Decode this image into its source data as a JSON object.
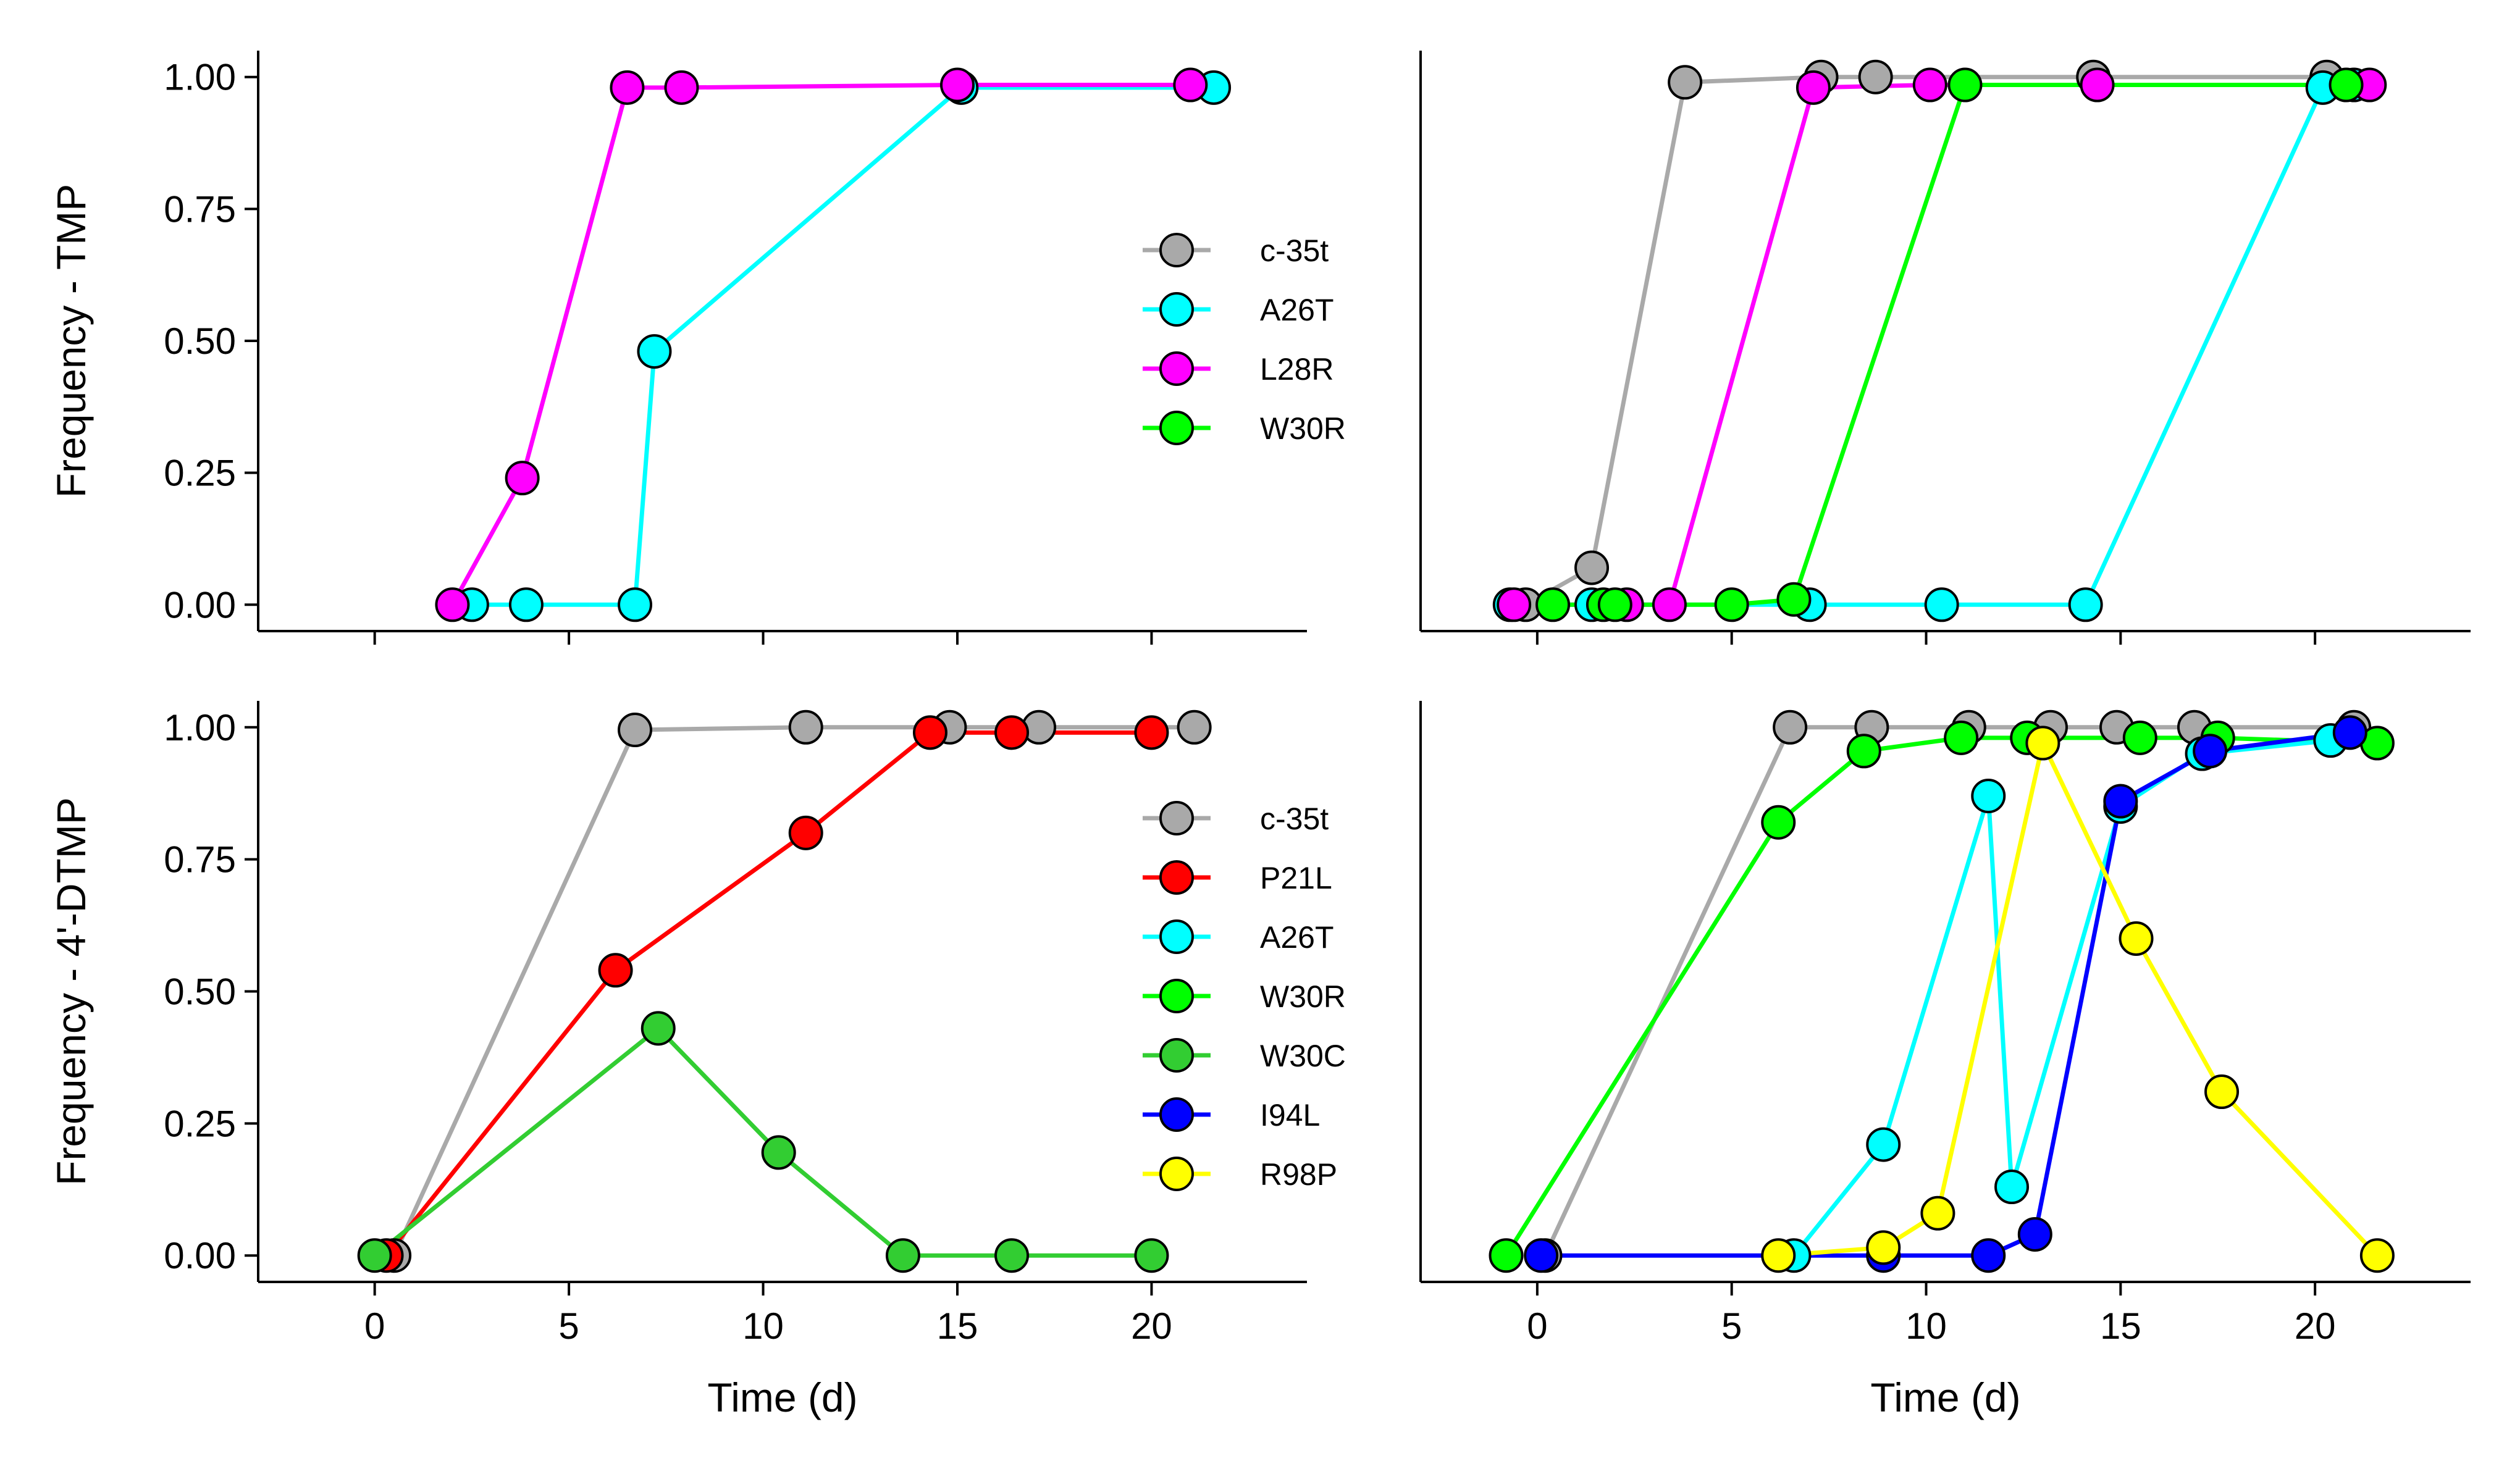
{
  "chart_data": [
    {
      "type": "line",
      "panel": "top-left",
      "ylabel": "Frequency - TMP",
      "xlabel": "",
      "xlim": [
        -3,
        24
      ],
      "ylim": [
        -0.05,
        1.05
      ],
      "xticks": [
        0,
        5,
        10,
        15,
        20
      ],
      "xtick_labels": [
        "",
        "",
        "",
        "",
        ""
      ],
      "yticks": [
        0,
        0.25,
        0.5,
        0.75,
        1.0
      ],
      "ytick_labels": [
        "0.00",
        "0.25",
        "0.50",
        "0.75",
        "1.00"
      ],
      "grid": false,
      "legend_position": "center-right",
      "legend": [
        "c-35t",
        "A26T",
        "L28R",
        "W30R"
      ],
      "series": [
        {
          "name": "A26T",
          "color": "#00ffff",
          "x": [
            2.5,
            3.9,
            6.7,
            7.2,
            15.1,
            21.6
          ],
          "y": [
            0.0,
            0.0,
            0.0,
            0.48,
            0.98,
            0.98
          ]
        },
        {
          "name": "L28R",
          "color": "#ff00ff",
          "x": [
            2.0,
            3.8,
            6.5,
            7.9,
            15.0,
            21.0
          ],
          "y": [
            0.0,
            0.24,
            0.98,
            0.98,
            0.985,
            0.985
          ]
        }
      ]
    },
    {
      "type": "line",
      "panel": "top-right",
      "ylabel": "",
      "xlabel": "",
      "xlim": [
        -3,
        24
      ],
      "ylim": [
        -0.05,
        1.05
      ],
      "xticks": [
        0,
        5,
        10,
        15,
        20
      ],
      "xtick_labels": [
        "",
        "",
        "",
        "",
        ""
      ],
      "grid": false,
      "series": [
        {
          "name": "c-35t",
          "color": "#a9a9a9",
          "x": [
            -0.3,
            1.4,
            3.8,
            7.3,
            8.7,
            14.3,
            20.3
          ],
          "y": [
            0.0,
            0.07,
            0.99,
            1.0,
            1.0,
            1.0,
            1.0
          ]
        },
        {
          "name": "A26T",
          "color": "#00ffff",
          "x": [
            -0.7,
            1.4,
            7.0,
            10.4,
            14.1,
            20.2,
            21.0
          ],
          "y": [
            0.0,
            0.0,
            0.0,
            0.0,
            0.0,
            0.98,
            0.985
          ]
        },
        {
          "name": "L28R",
          "color": "#ff00ff",
          "x": [
            -0.6,
            2.3,
            3.4,
            7.1,
            10.1,
            14.4,
            21.4
          ],
          "y": [
            0.0,
            0.0,
            0.0,
            0.98,
            0.985,
            0.985,
            0.985
          ]
        },
        {
          "name": "W30R",
          "color": "#00ff00",
          "x": [
            0.4,
            1.7,
            2.0,
            5.0,
            6.6,
            11.0,
            20.8
          ],
          "y": [
            0.0,
            0.0,
            0.0,
            0.0,
            0.01,
            0.985,
            0.985
          ]
        }
      ]
    },
    {
      "type": "line",
      "panel": "bottom-left",
      "ylabel": "Frequency - 4'-DTMP",
      "xlabel": "Time (d)",
      "xlim": [
        -3,
        24
      ],
      "ylim": [
        -0.05,
        1.05
      ],
      "xticks": [
        0,
        5,
        10,
        15,
        20
      ],
      "xtick_labels": [
        "0",
        "5",
        "10",
        "15",
        "20"
      ],
      "yticks": [
        0,
        0.25,
        0.5,
        0.75,
        1.0
      ],
      "ytick_labels": [
        "0.00",
        "0.25",
        "0.50",
        "0.75",
        "1.00"
      ],
      "grid": false,
      "legend_position": "center-right",
      "legend": [
        "c-35t",
        "P21L",
        "A26T",
        "W30R",
        "W30C",
        "I94L",
        "R98P"
      ],
      "series": [
        {
          "name": "c-35t",
          "color": "#a9a9a9",
          "x": [
            0.5,
            6.7,
            11.1,
            14.8,
            17.1,
            21.1
          ],
          "y": [
            0.0,
            0.995,
            1.0,
            1.0,
            1.0,
            1.0
          ]
        },
        {
          "name": "P21L",
          "color": "#ff0000",
          "x": [
            0.3,
            6.2,
            11.1,
            14.3,
            16.4,
            20.0
          ],
          "y": [
            0.0,
            0.54,
            0.8,
            0.99,
            0.99,
            0.99
          ]
        },
        {
          "name": "W30C",
          "color": "#32cd32",
          "x": [
            0.0,
            7.3,
            10.4,
            13.6,
            16.4,
            20.0
          ],
          "y": [
            0.0,
            0.43,
            0.195,
            0.0,
            0.0,
            0.0
          ]
        }
      ]
    },
    {
      "type": "line",
      "panel": "bottom-right",
      "ylabel": "",
      "xlabel": "Time (d)",
      "xlim": [
        -3,
        24
      ],
      "ylim": [
        -0.05,
        1.05
      ],
      "xticks": [
        0,
        5,
        10,
        15,
        20
      ],
      "xtick_labels": [
        "0",
        "5",
        "10",
        "15",
        "20"
      ],
      "grid": false,
      "series": [
        {
          "name": "c-35t",
          "color": "#a9a9a9",
          "x": [
            0.2,
            6.5,
            8.6,
            11.1,
            13.2,
            14.9,
            16.9,
            21.0
          ],
          "y": [
            0.0,
            1.0,
            1.0,
            1.0,
            1.0,
            1.0,
            1.0,
            1.0
          ]
        },
        {
          "name": "W30R",
          "color": "#00ff00",
          "x": [
            -0.8,
            6.2,
            8.4,
            10.9,
            12.6,
            15.5,
            17.5,
            21.6
          ],
          "y": [
            0.0,
            0.82,
            0.955,
            0.98,
            0.98,
            0.98,
            0.98,
            0.97
          ]
        },
        {
          "name": "A26T",
          "color": "#00ffff",
          "x": [
            6.6,
            8.9,
            11.6,
            12.2,
            15.0,
            17.1,
            20.4
          ],
          "y": [
            0.0,
            0.21,
            0.87,
            0.13,
            0.85,
            0.95,
            0.975
          ]
        },
        {
          "name": "I94L",
          "color": "#0000ff",
          "x": [
            0.1,
            8.9,
            11.6,
            12.8,
            15.0,
            17.3,
            20.9
          ],
          "y": [
            0.0,
            0.0,
            0.0,
            0.04,
            0.86,
            0.955,
            0.99
          ]
        },
        {
          "name": "R98P",
          "color": "#ffff00",
          "x": [
            6.2,
            8.9,
            10.3,
            13.0,
            15.4,
            17.6,
            21.6
          ],
          "y": [
            0.0,
            0.015,
            0.08,
            0.97,
            0.6,
            0.31,
            0.0
          ]
        }
      ]
    }
  ],
  "legend_styles": {
    "c-35t": "#a9a9a9",
    "A26T": "#00ffff",
    "L28R": "#ff00ff",
    "W30R": "#00ff00",
    "P21L": "#ff0000",
    "W30C": "#32cd32",
    "I94L": "#0000ff",
    "R98P": "#ffff00"
  }
}
